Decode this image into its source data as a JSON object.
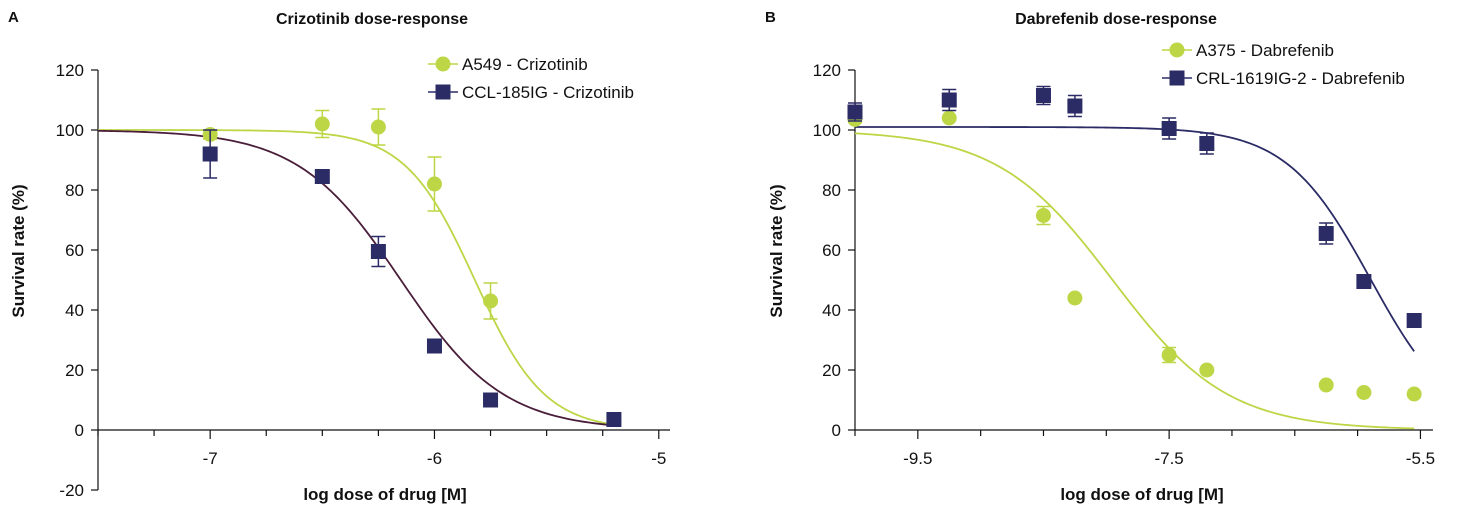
{
  "chart_data": [
    {
      "type": "scatter",
      "panel": "A",
      "title": "Crizotinib dose-response",
      "xlabel": "log dose of drug [M]",
      "ylabel": "Survival rate (%)",
      "xlim": [
        -7.5,
        -4.95
      ],
      "ylim": [
        -20,
        120
      ],
      "x_ticks": [
        -7,
        -6,
        -5
      ],
      "y_ticks": [
        -20,
        0,
        20,
        40,
        60,
        80,
        100,
        120
      ],
      "legend_position": "top-right",
      "grid": false,
      "series": [
        {
          "name": "A549 - Crizotinib",
          "color": "#bcd646",
          "marker": "circle",
          "fit": {
            "top": 100,
            "bottom": 0,
            "log_ec50": -5.82,
            "hill": 2.8
          },
          "points": [
            {
              "x": -7.0,
              "y": 98.5,
              "err": 1.5
            },
            {
              "x": -6.5,
              "y": 102,
              "err": 4.5
            },
            {
              "x": -6.25,
              "y": 101,
              "err": 6
            },
            {
              "x": -6.0,
              "y": 82,
              "err": 9
            },
            {
              "x": -5.75,
              "y": 43,
              "err": 6
            },
            {
              "x": -5.2,
              "y": 3.5,
              "err": 0
            }
          ]
        },
        {
          "name": "CCL-185IG - Crizotinib",
          "color": "#2b2b66",
          "curve_color": "#4a1e3a",
          "marker": "square",
          "fit": {
            "top": 100,
            "bottom": 0,
            "log_ec50": -6.15,
            "hill": 1.9
          },
          "points": [
            {
              "x": -7.0,
              "y": 92,
              "err": 8
            },
            {
              "x": -6.5,
              "y": 84.5,
              "err": 0
            },
            {
              "x": -6.25,
              "y": 59.5,
              "err": 5
            },
            {
              "x": -6.0,
              "y": 28,
              "err": 0
            },
            {
              "x": -5.75,
              "y": 10,
              "err": 0
            },
            {
              "x": -5.2,
              "y": 3.5,
              "err": 0
            }
          ]
        }
      ]
    },
    {
      "type": "scatter",
      "panel": "B",
      "title": "Dabrefenib dose-response",
      "xlabel": "log dose of drug [M]",
      "ylabel": "Survival rate (%)",
      "xlim": [
        -10.0,
        -5.4
      ],
      "ylim": [
        0,
        120
      ],
      "x_ticks": [
        -9.5,
        -7.5,
        -5.5
      ],
      "y_ticks": [
        0,
        20,
        40,
        60,
        80,
        100,
        120
      ],
      "legend_position": "top-right",
      "grid": false,
      "series": [
        {
          "name": "A375 - Dabrefenib",
          "color": "#bcd646",
          "marker": "circle",
          "fit": {
            "top": 100,
            "bottom": 0,
            "log_ec50": -7.95,
            "hill": 0.95
          },
          "points": [
            {
              "x": -10.0,
              "y": 103.5,
              "err": 1
            },
            {
              "x": -9.25,
              "y": 104,
              "err": 0
            },
            {
              "x": -8.5,
              "y": 71.5,
              "err": 3
            },
            {
              "x": -8.25,
              "y": 44,
              "err": 0
            },
            {
              "x": -7.5,
              "y": 25,
              "err": 2.5
            },
            {
              "x": -7.2,
              "y": 20,
              "err": 0
            },
            {
              "x": -6.25,
              "y": 15,
              "err": 0
            },
            {
              "x": -5.95,
              "y": 12.5,
              "err": 0
            },
            {
              "x": -5.55,
              "y": 12,
              "err": 0
            }
          ]
        },
        {
          "name": "CRL-1619IG-2 - Dabrefenib",
          "color": "#2b2b66",
          "marker": "square",
          "fit": {
            "top": 101,
            "bottom": 0,
            "log_ec50": -5.9,
            "hill": 1.3
          },
          "points": [
            {
              "x": -10.0,
              "y": 106,
              "err": 3
            },
            {
              "x": -9.25,
              "y": 110,
              "err": 3.5
            },
            {
              "x": -8.5,
              "y": 111.5,
              "err": 3
            },
            {
              "x": -8.25,
              "y": 108,
              "err": 3.5
            },
            {
              "x": -7.5,
              "y": 100.5,
              "err": 3.5
            },
            {
              "x": -7.2,
              "y": 95.5,
              "err": 3.5
            },
            {
              "x": -6.25,
              "y": 65.5,
              "err": 3.5
            },
            {
              "x": -5.95,
              "y": 49.5,
              "err": 0
            },
            {
              "x": -5.55,
              "y": 36.5,
              "err": 0
            }
          ]
        }
      ]
    }
  ]
}
